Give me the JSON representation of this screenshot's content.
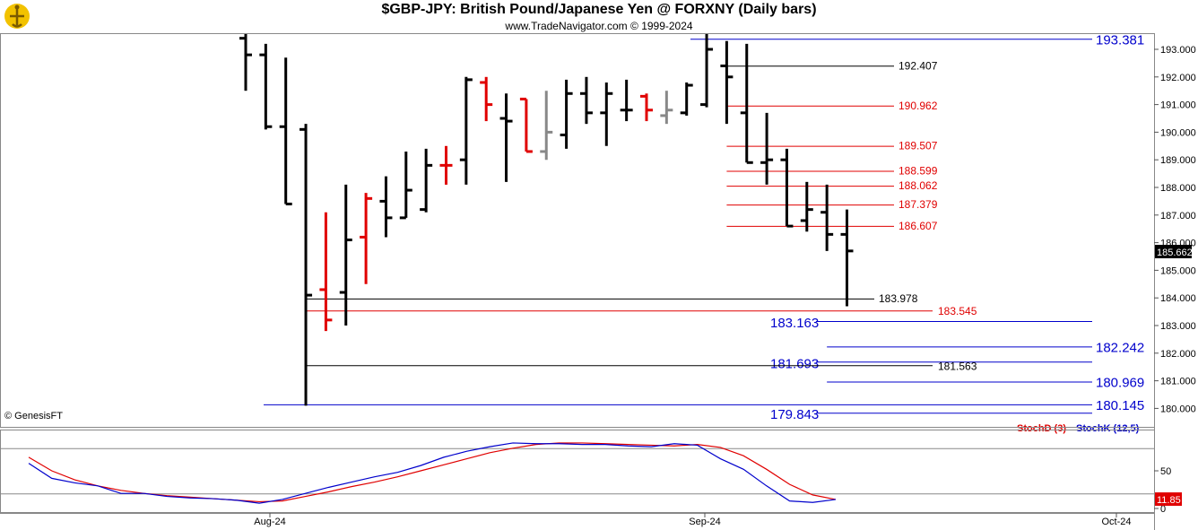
{
  "header": {
    "title": "$GBP-JPY:  British Pound/Japanese Yen @ FORXNY  (Daily bars)",
    "subtitle": "www.TradeNavigator.com © 1999-2024",
    "copyright": "© GenesisFT"
  },
  "colors": {
    "up_bar": "#000000",
    "down_bar_red": "#e00000",
    "neutral_bar": "#888888",
    "fib_red": "#e00000",
    "fib_blue": "#0000cc",
    "fib_black": "#000000",
    "stochd": "#e00000",
    "stochk": "#0000cc",
    "last_price_bg": "#000000"
  },
  "chart_data": [
    {
      "type": "ohlc",
      "title": "$GBP-JPY:  British Pound/Japanese Yen @ FORXNY  (Daily bars)",
      "ylim": [
        179.5,
        193.8
      ],
      "y_ticks": [
        "180.000",
        "181.000",
        "182.000",
        "183.000",
        "184.000",
        "185.000",
        "186.000",
        "187.000",
        "188.000",
        "189.000",
        "190.000",
        "191.000",
        "192.000",
        "193.000"
      ],
      "x_ticks": [
        "Aug-24",
        "Sep-24",
        "Oct-24"
      ],
      "last_price": "185.662",
      "bars": [
        {
          "o": 193.4,
          "h": 193.9,
          "l": 191.5,
          "c": 192.8,
          "color": "black"
        },
        {
          "o": 192.8,
          "h": 193.2,
          "l": 190.1,
          "c": 190.2,
          "color": "black"
        },
        {
          "o": 190.2,
          "h": 192.7,
          "l": 187.4,
          "c": 187.4,
          "color": "black"
        },
        {
          "o": 190.1,
          "h": 190.3,
          "l": 180.1,
          "c": 184.1,
          "color": "black"
        },
        {
          "o": 184.3,
          "h": 187.1,
          "l": 182.8,
          "c": 183.2,
          "color": "red"
        },
        {
          "o": 184.2,
          "h": 188.1,
          "l": 183.0,
          "c": 186.1,
          "color": "black"
        },
        {
          "o": 186.2,
          "h": 187.8,
          "l": 184.5,
          "c": 187.6,
          "color": "red"
        },
        {
          "o": 187.5,
          "h": 188.4,
          "l": 186.2,
          "c": 186.9,
          "color": "black"
        },
        {
          "o": 186.9,
          "h": 189.3,
          "l": 186.9,
          "c": 187.9,
          "color": "black"
        },
        {
          "o": 187.2,
          "h": 189.4,
          "l": 187.1,
          "c": 188.8,
          "color": "black"
        },
        {
          "o": 188.8,
          "h": 189.5,
          "l": 188.1,
          "c": 188.8,
          "color": "red"
        },
        {
          "o": 189.0,
          "h": 192.0,
          "l": 188.1,
          "c": 191.9,
          "color": "black"
        },
        {
          "o": 191.8,
          "h": 192.0,
          "l": 190.4,
          "c": 191.0,
          "color": "red"
        },
        {
          "o": 190.5,
          "h": 191.4,
          "l": 188.2,
          "c": 190.4,
          "color": "black"
        },
        {
          "o": 191.2,
          "h": 191.2,
          "l": 189.3,
          "c": 189.3,
          "color": "red"
        },
        {
          "o": 189.3,
          "h": 191.5,
          "l": 189.0,
          "c": 190.0,
          "color": "gray"
        },
        {
          "o": 189.9,
          "h": 191.9,
          "l": 189.4,
          "c": 191.4,
          "color": "black"
        },
        {
          "o": 191.4,
          "h": 192.0,
          "l": 190.3,
          "c": 190.7,
          "color": "black"
        },
        {
          "o": 190.7,
          "h": 191.8,
          "l": 189.5,
          "c": 191.4,
          "color": "black"
        },
        {
          "o": 190.8,
          "h": 191.9,
          "l": 190.4,
          "c": 190.8,
          "color": "black"
        },
        {
          "o": 191.3,
          "h": 191.4,
          "l": 190.4,
          "c": 190.8,
          "color": "red"
        },
        {
          "o": 190.6,
          "h": 191.5,
          "l": 190.3,
          "c": 190.8,
          "color": "gray"
        },
        {
          "o": 190.7,
          "h": 191.8,
          "l": 190.6,
          "c": 191.7,
          "color": "black"
        },
        {
          "o": 191.0,
          "h": 193.8,
          "l": 190.9,
          "c": 193.0,
          "color": "black"
        },
        {
          "o": 192.4,
          "h": 193.3,
          "l": 190.3,
          "c": 192.0,
          "color": "black"
        },
        {
          "o": 190.7,
          "h": 193.2,
          "l": 188.9,
          "c": 188.9,
          "color": "black"
        },
        {
          "o": 188.9,
          "h": 190.7,
          "l": 188.1,
          "c": 189.0,
          "color": "black"
        },
        {
          "o": 189.0,
          "h": 189.4,
          "l": 186.6,
          "c": 186.6,
          "color": "black"
        },
        {
          "o": 186.8,
          "h": 188.2,
          "l": 186.4,
          "c": 187.2,
          "color": "black"
        },
        {
          "o": 187.1,
          "h": 188.1,
          "l": 185.7,
          "c": 186.3,
          "color": "black"
        },
        {
          "o": 186.3,
          "h": 187.2,
          "l": 183.7,
          "c": 185.7,
          "color": "black"
        }
      ],
      "levels": [
        {
          "value": 193.381,
          "label": "193.381",
          "color": "blue",
          "from": 23,
          "to": "end",
          "label_pos": "right",
          "big": true
        },
        {
          "value": 192.407,
          "label": "192.407",
          "color": "black",
          "from": 24,
          "to": "mid",
          "label_pos": "mid"
        },
        {
          "value": 190.962,
          "label": "190.962",
          "color": "red",
          "from": 24,
          "to": "mid",
          "label_pos": "mid"
        },
        {
          "value": 189.507,
          "label": "189.507",
          "color": "red",
          "from": 24,
          "to": "mid",
          "label_pos": "mid"
        },
        {
          "value": 188.599,
          "label": "188.599",
          "color": "red",
          "from": 24,
          "to": "mid",
          "label_pos": "mid"
        },
        {
          "value": 188.062,
          "label": "188.062",
          "color": "red",
          "from": 24,
          "to": "mid",
          "label_pos": "mid"
        },
        {
          "value": 187.379,
          "label": "187.379",
          "color": "red",
          "from": 24,
          "to": "mid",
          "label_pos": "mid"
        },
        {
          "value": 186.607,
          "label": "186.607",
          "color": "red",
          "from": 24,
          "to": "mid",
          "label_pos": "mid"
        },
        {
          "value": 183.978,
          "label": "183.978",
          "color": "black",
          "from": 3,
          "to": "lower",
          "label_pos": "lower"
        },
        {
          "value": 183.545,
          "label": "183.545",
          "color": "red",
          "from": 3,
          "to": "lowerred",
          "label_pos": "lowerred"
        },
        {
          "value": 183.163,
          "label": "183.163",
          "color": "blue",
          "from": 29,
          "to": "end",
          "label_pos": "left",
          "big": true
        },
        {
          "value": 182.242,
          "label": "182.242",
          "color": "blue",
          "from": 29,
          "to": "end",
          "label_pos": "right",
          "big": true
        },
        {
          "value": 181.693,
          "label": "181.693",
          "color": "blue",
          "from": 29,
          "to": "end",
          "label_pos": "left",
          "big": true
        },
        {
          "value": 181.563,
          "label": "181.563",
          "color": "black",
          "from": 3,
          "to": "lowerred",
          "label_pos": "lowerred"
        },
        {
          "value": 180.969,
          "label": "180.969",
          "color": "blue",
          "from": 29,
          "to": "end",
          "label_pos": "right",
          "big": true
        },
        {
          "value": 180.145,
          "label": "180.145",
          "color": "blue",
          "from": 0,
          "to": "end",
          "label_pos": "right",
          "big": true
        },
        {
          "value": 179.843,
          "label": "179.843",
          "color": "blue",
          "from": 29,
          "to": "end",
          "label_pos": "left",
          "big": true
        }
      ]
    },
    {
      "type": "line",
      "ylim": [
        0,
        100
      ],
      "y_ticks": [
        "0",
        "50"
      ],
      "reference_lines": [
        20,
        80
      ],
      "last_value": "11.85",
      "series": [
        {
          "name": "StochD (3)",
          "color": "red",
          "values": [
            68,
            50,
            38,
            30,
            24,
            20,
            17,
            15,
            13,
            11,
            9,
            10,
            16,
            22,
            29,
            35,
            42,
            50,
            58,
            66,
            74,
            80,
            85,
            87,
            87,
            86,
            85,
            84,
            83,
            85,
            81,
            70,
            52,
            32,
            18,
            12
          ]
        },
        {
          "name": "StochK (12,5)",
          "color": "blue",
          "values": [
            60,
            40,
            34,
            30,
            20,
            20,
            16,
            14,
            13,
            11,
            7,
            12,
            20,
            28,
            35,
            42,
            48,
            57,
            68,
            76,
            82,
            87,
            86,
            86,
            85,
            85,
            83,
            82,
            86,
            84,
            66,
            52,
            30,
            10,
            8,
            12
          ]
        }
      ]
    }
  ]
}
